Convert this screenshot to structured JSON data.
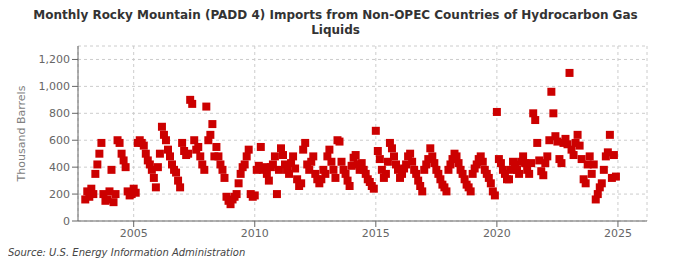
{
  "chart_data": {
    "type": "scatter",
    "title": "Monthly Rocky Mountain (PADD 4) Imports from Non-OPEC Countries of Hydrocarbon Gas\nLiquids",
    "y_label": "Thousand Barrels",
    "annotations": [
      "Source: U.S. Energy Information Administration"
    ],
    "color": "#cc0000",
    "marker": "square",
    "grid": true,
    "xlim": [
      2002.7,
      2026.2
    ],
    "xticks": [
      2005,
      2010,
      2015,
      2020,
      2025
    ],
    "ylim": [
      0,
      1300
    ],
    "yticks": [
      0,
      200,
      400,
      600,
      800,
      {
        "value": 1000,
        "label": "1,000"
      },
      {
        "value": 1200,
        "label": "1,200"
      }
    ],
    "x": [
      2003.0,
      2003.083,
      2003.167,
      2003.25,
      2003.333,
      2003.417,
      2003.5,
      2003.583,
      2003.667,
      2003.75,
      2003.833,
      2003.917,
      2004.0,
      2004.083,
      2004.167,
      2004.25,
      2004.333,
      2004.417,
      2004.5,
      2004.583,
      2004.667,
      2004.75,
      2004.833,
      2004.917,
      2005.0,
      2005.083,
      2005.167,
      2005.25,
      2005.333,
      2005.417,
      2005.5,
      2005.583,
      2005.667,
      2005.75,
      2005.833,
      2005.917,
      2006.0,
      2006.083,
      2006.167,
      2006.25,
      2006.333,
      2006.417,
      2006.5,
      2006.583,
      2006.667,
      2006.75,
      2006.833,
      2006.917,
      2007.0,
      2007.083,
      2007.167,
      2007.25,
      2007.333,
      2007.417,
      2007.5,
      2007.583,
      2007.667,
      2007.75,
      2007.833,
      2007.917,
      2008.0,
      2008.083,
      2008.167,
      2008.25,
      2008.333,
      2008.417,
      2008.5,
      2008.583,
      2008.667,
      2008.75,
      2008.833,
      2008.917,
      2009.0,
      2009.083,
      2009.167,
      2009.25,
      2009.333,
      2009.417,
      2009.5,
      2009.583,
      2009.667,
      2009.75,
      2009.833,
      2009.917,
      2010.0,
      2010.083,
      2010.167,
      2010.25,
      2010.333,
      2010.417,
      2010.5,
      2010.583,
      2010.667,
      2010.75,
      2010.833,
      2010.917,
      2011.0,
      2011.083,
      2011.167,
      2011.25,
      2011.333,
      2011.417,
      2011.5,
      2011.583,
      2011.667,
      2011.75,
      2011.833,
      2011.917,
      2012.0,
      2012.083,
      2012.167,
      2012.25,
      2012.333,
      2012.417,
      2012.5,
      2012.583,
      2012.667,
      2012.75,
      2012.833,
      2012.917,
      2013.0,
      2013.083,
      2013.167,
      2013.25,
      2013.333,
      2013.417,
      2013.5,
      2013.583,
      2013.667,
      2013.75,
      2013.833,
      2013.917,
      2014.0,
      2014.083,
      2014.167,
      2014.25,
      2014.333,
      2014.417,
      2014.5,
      2014.583,
      2014.667,
      2014.75,
      2014.833,
      2014.917,
      2015.0,
      2015.083,
      2015.167,
      2015.25,
      2015.333,
      2015.417,
      2015.5,
      2015.583,
      2015.667,
      2015.75,
      2015.833,
      2015.917,
      2016.0,
      2016.083,
      2016.167,
      2016.25,
      2016.333,
      2016.417,
      2016.5,
      2016.583,
      2016.667,
      2016.75,
      2016.833,
      2016.917,
      2017.0,
      2017.083,
      2017.167,
      2017.25,
      2017.333,
      2017.417,
      2017.5,
      2017.583,
      2017.667,
      2017.75,
      2017.833,
      2017.917,
      2018.0,
      2018.083,
      2018.167,
      2018.25,
      2018.333,
      2018.417,
      2018.5,
      2018.583,
      2018.667,
      2018.75,
      2018.833,
      2018.917,
      2019.0,
      2019.083,
      2019.167,
      2019.25,
      2019.333,
      2019.417,
      2019.5,
      2019.583,
      2019.667,
      2019.75,
      2019.833,
      2019.917,
      2020.0,
      2020.083,
      2020.167,
      2020.25,
      2020.333,
      2020.417,
      2020.5,
      2020.583,
      2020.667,
      2020.75,
      2020.833,
      2020.917,
      2021.0,
      2021.083,
      2021.167,
      2021.25,
      2021.333,
      2021.417,
      2021.5,
      2021.583,
      2021.667,
      2021.75,
      2021.833,
      2021.917,
      2022.0,
      2022.083,
      2022.167,
      2022.25,
      2022.333,
      2022.417,
      2022.5,
      2022.583,
      2022.667,
      2022.75,
      2022.833,
      2022.917,
      2023.0,
      2023.083,
      2023.167,
      2023.25,
      2023.333,
      2023.417,
      2023.5,
      2023.583,
      2023.667,
      2023.75,
      2023.833,
      2023.917,
      2024.0,
      2024.083,
      2024.167,
      2024.25,
      2024.333,
      2024.417,
      2024.5,
      2024.583,
      2024.667,
      2024.75,
      2024.833,
      2024.917
    ],
    "values": [
      160,
      220,
      180,
      240,
      200,
      350,
      420,
      500,
      580,
      200,
      150,
      160,
      220,
      380,
      140,
      200,
      600,
      580,
      500,
      450,
      400,
      220,
      190,
      200,
      240,
      210,
      580,
      600,
      580,
      560,
      500,
      450,
      420,
      380,
      320,
      250,
      400,
      500,
      700,
      640,
      600,
      530,
      480,
      420,
      380,
      360,
      300,
      250,
      580,
      520,
      490,
      500,
      900,
      870,
      600,
      530,
      550,
      480,
      420,
      380,
      850,
      600,
      640,
      720,
      480,
      550,
      480,
      420,
      380,
      320,
      180,
      150,
      125,
      160,
      180,
      200,
      280,
      350,
      400,
      420,
      480,
      530,
      200,
      180,
      190,
      380,
      410,
      550,
      380,
      400,
      350,
      300,
      400,
      420,
      480,
      200,
      380,
      540,
      490,
      420,
      380,
      350,
      430,
      480,
      390,
      310,
      260,
      280,
      530,
      580,
      420,
      380,
      440,
      480,
      350,
      310,
      280,
      310,
      380,
      350,
      480,
      530,
      440,
      380,
      320,
      600,
      590,
      440,
      380,
      350,
      300,
      260,
      410,
      470,
      490,
      420,
      380,
      430,
      380,
      350,
      310,
      290,
      260,
      240,
      670,
      520,
      460,
      380,
      320,
      350,
      440,
      580,
      540,
      480,
      420,
      380,
      320,
      350,
      390,
      420,
      480,
      500,
      440,
      380,
      350,
      300,
      260,
      220,
      380,
      420,
      460,
      540,
      480,
      430,
      380,
      350,
      310,
      270,
      250,
      220,
      380,
      420,
      460,
      500,
      480,
      430,
      380,
      350,
      310,
      270,
      250,
      220,
      350,
      390,
      420,
      460,
      480,
      440,
      380,
      350,
      320,
      280,
      220,
      190,
      810,
      460,
      430,
      380,
      350,
      310,
      310,
      380,
      440,
      420,
      380,
      350,
      440,
      480,
      430,
      380,
      350,
      430,
      800,
      750,
      580,
      450,
      370,
      340,
      430,
      480,
      600,
      960,
      800,
      630,
      590,
      460,
      430,
      580,
      610,
      570,
      1100,
      530,
      490,
      580,
      640,
      560,
      460,
      310,
      280,
      420,
      480,
      350,
      420,
      160,
      200,
      250,
      280,
      380,
      480,
      510,
      640,
      320,
      490,
      330
    ]
  }
}
